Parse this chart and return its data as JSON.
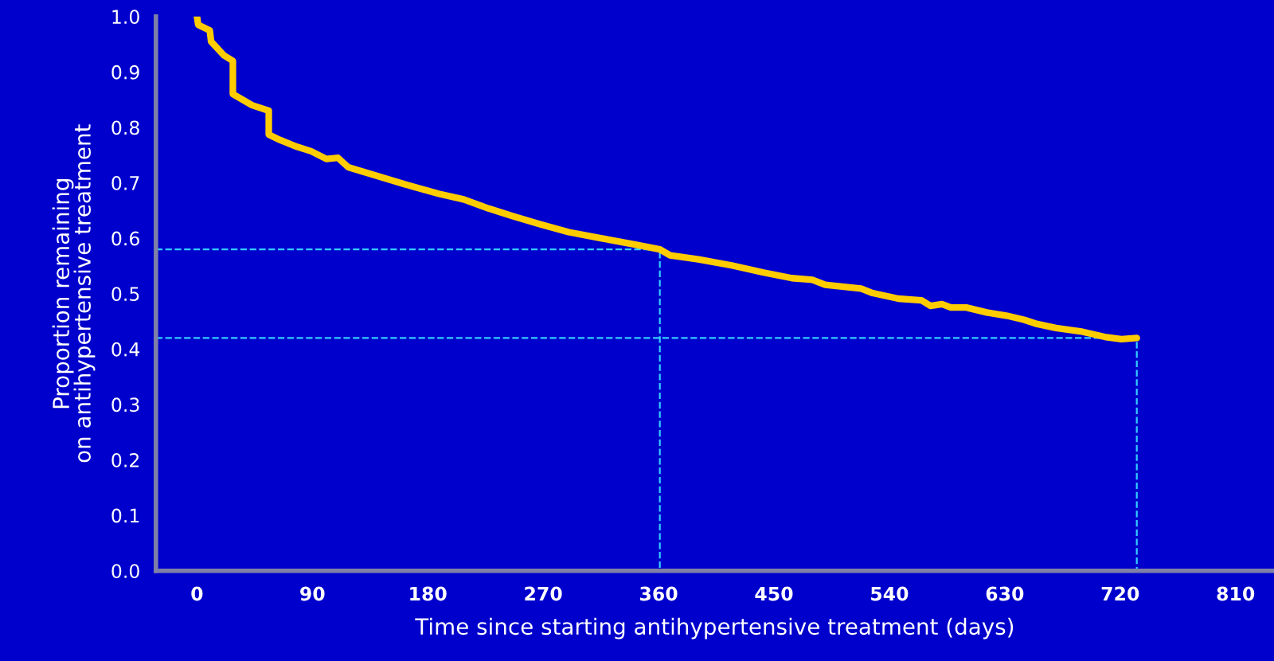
{
  "chart_data": {
    "type": "line",
    "xlabel": "Time since starting antihypertensive treatment (days)",
    "ylabel": "Proportion remaining\non antihypertensive treatment",
    "xlim": [
      -32,
      840
    ],
    "xticks": [
      0,
      90,
      180,
      270,
      360,
      450,
      540,
      630,
      720,
      810
    ],
    "ylim": [
      0,
      1.0
    ],
    "yticks": [
      {
        "value": 0,
        "label": "0.0"
      },
      {
        "value": 0.1,
        "label": "0.1"
      },
      {
        "value": 0.2,
        "label": "0.2"
      },
      {
        "value": 0.3,
        "label": "0.3"
      },
      {
        "value": 0.4,
        "label": "0.4"
      },
      {
        "value": 0.5,
        "label": "0.5"
      },
      {
        "value": 0.6,
        "label": "0.6"
      },
      {
        "value": 0.7,
        "label": "0.7"
      },
      {
        "value": 0.8,
        "label": "0.8"
      },
      {
        "value": 0.9,
        "label": "0.9"
      },
      {
        "value": 1.0,
        "label": "1.0"
      }
    ],
    "grid": false,
    "legend": false,
    "series": [
      {
        "line_style": "dashed",
        "color": "#33ccff",
        "x": [
          -32,
          361,
          361
        ],
        "values": [
          0.58,
          0.58,
          0
        ]
      },
      {
        "line_style": "dashed",
        "color": "#33ccff",
        "x": [
          -32,
          733,
          733
        ],
        "values": [
          0.42,
          0.42,
          0
        ]
      },
      {
        "line_style": "solid",
        "color": "#ffcc00",
        "x": [
          0,
          1,
          10,
          11,
          21,
          28,
          28,
          43,
          56,
          56,
          65,
          78,
          89,
          101,
          110,
          118,
          151,
          170,
          189,
          208,
          227,
          246,
          268,
          290,
          315,
          341,
          361,
          369,
          391,
          417,
          442,
          464,
          480,
          490,
          518,
          527,
          547,
          565,
          572,
          581,
          588,
          600,
          616,
          632,
          645,
          654,
          670,
          689,
          708,
          721,
          733
        ],
        "values": [
          1.0,
          0.985,
          0.975,
          0.955,
          0.93,
          0.92,
          0.86,
          0.84,
          0.83,
          0.787,
          0.777,
          0.765,
          0.757,
          0.743,
          0.745,
          0.728,
          0.705,
          0.692,
          0.68,
          0.67,
          0.654,
          0.64,
          0.625,
          0.611,
          0.6,
          0.589,
          0.58,
          0.569,
          0.562,
          0.551,
          0.538,
          0.528,
          0.525,
          0.516,
          0.509,
          0.501,
          0.491,
          0.488,
          0.478,
          0.481,
          0.475,
          0.475,
          0.466,
          0.46,
          0.453,
          0.446,
          0.438,
          0.432,
          0.422,
          0.418,
          0.42
        ]
      }
    ]
  }
}
